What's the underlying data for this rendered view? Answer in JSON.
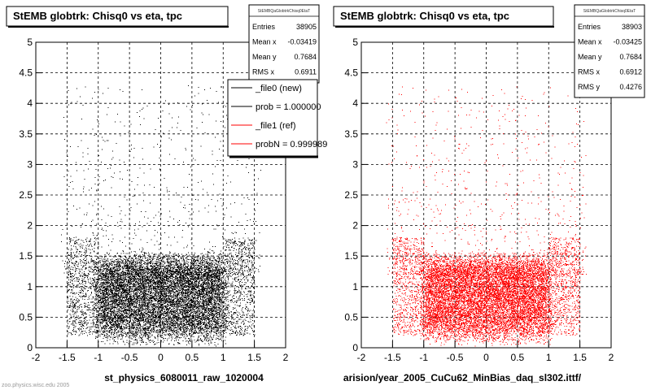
{
  "chart_data": [
    {
      "type": "scatter",
      "title": "StEMB globtrk: Chisq0 vs eta, tpc",
      "xlabel": "st_physics_6080011_raw_1020004",
      "ylabel": "",
      "xlim": [
        -2,
        2
      ],
      "ylim": [
        0,
        5
      ],
      "xticks": [
        "-2",
        "-1.5",
        "-1",
        "-0.5",
        "0",
        "0.5",
        "1",
        "1.5",
        "2"
      ],
      "yticks": [
        "0",
        "0.5",
        "1",
        "1.5",
        "2",
        "2.5",
        "3",
        "3.5",
        "4",
        "4.5",
        "5"
      ],
      "grid": true,
      "marker_color": "#000000",
      "series": [
        {
          "name": "_file0 (new)",
          "distribution": {
            "eta_core": [
              -1.0,
              1.0
            ],
            "eta_tails": [
              -1.5,
              1.5
            ],
            "chisq_dense": [
              0.2,
              1.4
            ],
            "chisq_sparse_max": 4.3
          }
        }
      ],
      "stats": {
        "header": "StEMBQaGlobtrkChisq0EtaT",
        "rows": [
          {
            "label": "Entries",
            "value": "38905"
          },
          {
            "label": "Mean x",
            "value": "-0.03419"
          },
          {
            "label": "Mean y",
            "value": "0.7684"
          },
          {
            "label": "RMS x",
            "value": "0.6911"
          }
        ]
      },
      "legend": {
        "placement": "top-right",
        "entries": [
          {
            "label": "_file0 (new)",
            "color": "#000000"
          },
          {
            "label": "prob = 1.000000",
            "color": "#000000"
          },
          {
            "label": "_file1 (ref)",
            "color": "#ff0000"
          },
          {
            "label": "probN = 0.999989",
            "color": "#ff0000"
          }
        ]
      }
    },
    {
      "type": "scatter",
      "title": "StEMB globtrk: Chisq0 vs eta, tpc",
      "xlabel": "arision/year_2005_CuCu62_MinBias_daq_sl302.ittf/",
      "ylabel": "",
      "xlim": [
        -2,
        2
      ],
      "ylim": [
        0,
        5
      ],
      "xticks": [
        "-2",
        "-1.5",
        "-1",
        "-0.5",
        "0",
        "0.5",
        "1",
        "1.5",
        "2"
      ],
      "yticks": [
        "0",
        "0.5",
        "1",
        "1.5",
        "2",
        "2.5",
        "3",
        "3.5",
        "4",
        "4.5",
        "5"
      ],
      "grid": true,
      "marker_color": "#ff0000",
      "series": [
        {
          "name": "_file1 (ref)",
          "distribution": {
            "eta_core": [
              -1.0,
              1.0
            ],
            "eta_tails": [
              -1.5,
              1.5
            ],
            "chisq_dense": [
              0.2,
              1.4
            ],
            "chisq_sparse_max": 4.3
          }
        }
      ],
      "stats": {
        "header": "StEMBQaGlobtrkChisq0EtaT",
        "rows": [
          {
            "label": "Entries",
            "value": "38903"
          },
          {
            "label": "Mean x",
            "value": "-0.03425"
          },
          {
            "label": "Mean y",
            "value": "0.7684"
          },
          {
            "label": "RMS x",
            "value": "0.6912"
          },
          {
            "label": "RMS y",
            "value": "0.4276"
          }
        ]
      }
    }
  ],
  "footer_text": "zoo.physics.wisc.edu 2005"
}
